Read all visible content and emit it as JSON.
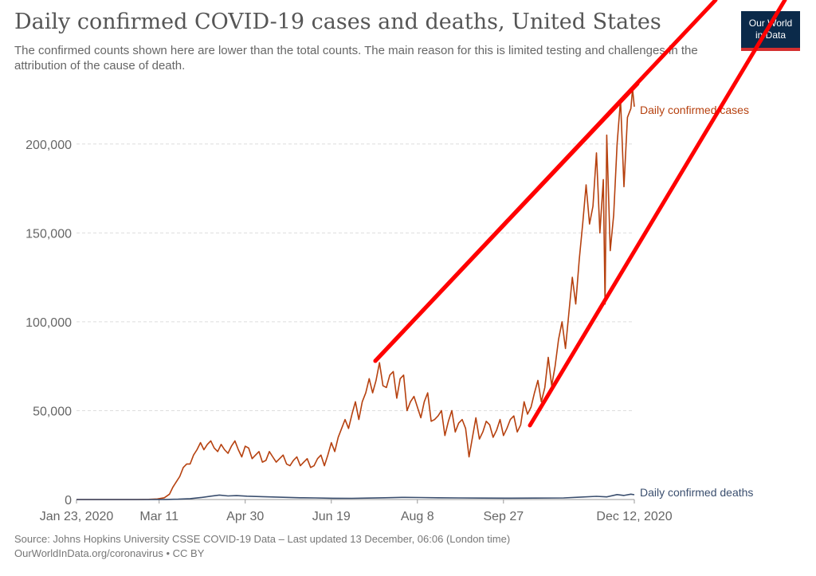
{
  "header": {
    "title": "Daily confirmed COVID-19 cases and deaths, United States",
    "subtitle": "The confirmed counts shown here are lower than the total counts. The main reason for this is limited testing and challenges in the attribution of the cause of death."
  },
  "logo": {
    "line1": "Our World",
    "line2": "in Data"
  },
  "footer": {
    "source": "Source: Johns Hopkins University CSSE COVID-19 Data – Last updated 13 December, 06:06 (London time)",
    "credit": "OurWorldInData.org/coronavirus • CC BY"
  },
  "colors": {
    "cases": "#b6410f",
    "deaths": "#3a4e6e",
    "grid": "#dddddd",
    "annotation": "#ff0000"
  },
  "chart_data": {
    "type": "line",
    "title": "Daily confirmed COVID-19 cases and deaths, United States",
    "xlabel": "",
    "ylabel": "",
    "ylim": [
      0,
      225000
    ],
    "yticks": [
      0,
      50000,
      100000,
      150000,
      200000
    ],
    "ytick_labels": [
      "0",
      "50,000",
      "100,000",
      "150,000",
      "200,000"
    ],
    "x_range": [
      "2020-01-23",
      "2020-12-12"
    ],
    "xticks": [
      "2020-01-23",
      "2020-03-11",
      "2020-04-30",
      "2020-06-19",
      "2020-08-08",
      "2020-09-27",
      "2020-12-12"
    ],
    "xtick_labels": [
      "Jan 23, 2020",
      "Mar 11",
      "Apr 30",
      "Jun 19",
      "Aug 8",
      "Sep 27",
      "Dec 12, 2020"
    ],
    "grid": "horizontal dashed",
    "legend": "inline labels at right end of lines",
    "series": [
      {
        "name": "Daily confirmed cases",
        "points": [
          [
            "2020-01-23",
            0
          ],
          [
            "2020-02-27",
            0
          ],
          [
            "2020-03-05",
            100
          ],
          [
            "2020-03-10",
            300
          ],
          [
            "2020-03-14",
            1000
          ],
          [
            "2020-03-17",
            3000
          ],
          [
            "2020-03-19",
            7000
          ],
          [
            "2020-03-21",
            10000
          ],
          [
            "2020-03-23",
            13000
          ],
          [
            "2020-03-25",
            18000
          ],
          [
            "2020-03-27",
            20000
          ],
          [
            "2020-03-29",
            20000
          ],
          [
            "2020-03-31",
            25000
          ],
          [
            "2020-04-02",
            28000
          ],
          [
            "2020-04-04",
            32000
          ],
          [
            "2020-04-06",
            28000
          ],
          [
            "2020-04-08",
            31000
          ],
          [
            "2020-04-10",
            33000
          ],
          [
            "2020-04-12",
            29000
          ],
          [
            "2020-04-14",
            27000
          ],
          [
            "2020-04-16",
            31000
          ],
          [
            "2020-04-18",
            28000
          ],
          [
            "2020-04-20",
            26000
          ],
          [
            "2020-04-22",
            30000
          ],
          [
            "2020-04-24",
            33000
          ],
          [
            "2020-04-26",
            28000
          ],
          [
            "2020-04-28",
            24000
          ],
          [
            "2020-04-30",
            30000
          ],
          [
            "2020-05-02",
            29000
          ],
          [
            "2020-05-04",
            23000
          ],
          [
            "2020-05-06",
            25000
          ],
          [
            "2020-05-08",
            27000
          ],
          [
            "2020-05-10",
            21000
          ],
          [
            "2020-05-12",
            22000
          ],
          [
            "2020-05-14",
            27000
          ],
          [
            "2020-05-16",
            24000
          ],
          [
            "2020-05-18",
            21000
          ],
          [
            "2020-05-20",
            23000
          ],
          [
            "2020-05-22",
            25000
          ],
          [
            "2020-05-24",
            20000
          ],
          [
            "2020-05-26",
            19000
          ],
          [
            "2020-05-28",
            22000
          ],
          [
            "2020-05-30",
            24000
          ],
          [
            "2020-06-01",
            19000
          ],
          [
            "2020-06-03",
            21000
          ],
          [
            "2020-06-05",
            23000
          ],
          [
            "2020-06-07",
            18000
          ],
          [
            "2020-06-09",
            19000
          ],
          [
            "2020-06-11",
            23000
          ],
          [
            "2020-06-13",
            25000
          ],
          [
            "2020-06-15",
            19000
          ],
          [
            "2020-06-17",
            25000
          ],
          [
            "2020-06-19",
            32000
          ],
          [
            "2020-06-21",
            27000
          ],
          [
            "2020-06-23",
            35000
          ],
          [
            "2020-06-25",
            40000
          ],
          [
            "2020-06-27",
            45000
          ],
          [
            "2020-06-29",
            40000
          ],
          [
            "2020-07-01",
            48000
          ],
          [
            "2020-07-03",
            55000
          ],
          [
            "2020-07-05",
            45000
          ],
          [
            "2020-07-07",
            55000
          ],
          [
            "2020-07-09",
            60000
          ],
          [
            "2020-07-11",
            68000
          ],
          [
            "2020-07-13",
            60000
          ],
          [
            "2020-07-15",
            67000
          ],
          [
            "2020-07-17",
            77000
          ],
          [
            "2020-07-19",
            64000
          ],
          [
            "2020-07-21",
            63000
          ],
          [
            "2020-07-23",
            70000
          ],
          [
            "2020-07-25",
            72000
          ],
          [
            "2020-07-27",
            57000
          ],
          [
            "2020-07-29",
            68000
          ],
          [
            "2020-07-31",
            70000
          ],
          [
            "2020-08-02",
            50000
          ],
          [
            "2020-08-04",
            55000
          ],
          [
            "2020-08-06",
            58000
          ],
          [
            "2020-08-08",
            52000
          ],
          [
            "2020-08-10",
            46000
          ],
          [
            "2020-08-12",
            55000
          ],
          [
            "2020-08-14",
            60000
          ],
          [
            "2020-08-16",
            44000
          ],
          [
            "2020-08-18",
            45000
          ],
          [
            "2020-08-20",
            47000
          ],
          [
            "2020-08-22",
            50000
          ],
          [
            "2020-08-24",
            36000
          ],
          [
            "2020-08-26",
            44000
          ],
          [
            "2020-08-28",
            50000
          ],
          [
            "2020-08-30",
            38000
          ],
          [
            "2020-09-01",
            43000
          ],
          [
            "2020-09-03",
            45000
          ],
          [
            "2020-09-05",
            40000
          ],
          [
            "2020-09-07",
            24000
          ],
          [
            "2020-09-09",
            35000
          ],
          [
            "2020-09-11",
            46000
          ],
          [
            "2020-09-13",
            34000
          ],
          [
            "2020-09-15",
            38000
          ],
          [
            "2020-09-17",
            44000
          ],
          [
            "2020-09-19",
            42000
          ],
          [
            "2020-09-21",
            35000
          ],
          [
            "2020-09-23",
            39000
          ],
          [
            "2020-09-25",
            45000
          ],
          [
            "2020-09-27",
            36000
          ],
          [
            "2020-09-29",
            40000
          ],
          [
            "2020-10-01",
            45000
          ],
          [
            "2020-10-03",
            47000
          ],
          [
            "2020-10-05",
            38000
          ],
          [
            "2020-10-07",
            42000
          ],
          [
            "2020-10-09",
            55000
          ],
          [
            "2020-10-11",
            48000
          ],
          [
            "2020-10-13",
            52000
          ],
          [
            "2020-10-15",
            60000
          ],
          [
            "2020-10-17",
            67000
          ],
          [
            "2020-10-19",
            55000
          ],
          [
            "2020-10-21",
            63000
          ],
          [
            "2020-10-23",
            80000
          ],
          [
            "2020-10-25",
            64000
          ],
          [
            "2020-10-27",
            75000
          ],
          [
            "2020-10-29",
            90000
          ],
          [
            "2020-10-31",
            100000
          ],
          [
            "2020-11-02",
            85000
          ],
          [
            "2020-11-04",
            105000
          ],
          [
            "2020-11-06",
            125000
          ],
          [
            "2020-11-08",
            110000
          ],
          [
            "2020-11-10",
            135000
          ],
          [
            "2020-11-12",
            155000
          ],
          [
            "2020-11-14",
            177000
          ],
          [
            "2020-11-16",
            155000
          ],
          [
            "2020-11-18",
            165000
          ],
          [
            "2020-11-20",
            195000
          ],
          [
            "2020-11-22",
            150000
          ],
          [
            "2020-11-24",
            180000
          ],
          [
            "2020-11-25",
            110000
          ],
          [
            "2020-11-26",
            205000
          ],
          [
            "2020-11-28",
            140000
          ],
          [
            "2020-11-30",
            160000
          ],
          [
            "2020-12-02",
            200000
          ],
          [
            "2020-12-04",
            225000
          ],
          [
            "2020-12-06",
            176000
          ],
          [
            "2020-12-08",
            215000
          ],
          [
            "2020-12-10",
            220000
          ],
          [
            "2020-12-11",
            231000
          ],
          [
            "2020-12-12",
            221000
          ]
        ]
      },
      {
        "name": "Daily confirmed deaths",
        "points": [
          [
            "2020-01-23",
            0
          ],
          [
            "2020-03-01",
            0
          ],
          [
            "2020-03-15",
            50
          ],
          [
            "2020-03-22",
            200
          ],
          [
            "2020-03-29",
            500
          ],
          [
            "2020-04-05",
            1200
          ],
          [
            "2020-04-10",
            1900
          ],
          [
            "2020-04-15",
            2500
          ],
          [
            "2020-04-20",
            2000
          ],
          [
            "2020-04-25",
            2200
          ],
          [
            "2020-05-01",
            1900
          ],
          [
            "2020-05-10",
            1600
          ],
          [
            "2020-05-20",
            1300
          ],
          [
            "2020-06-01",
            1000
          ],
          [
            "2020-06-10",
            900
          ],
          [
            "2020-06-20",
            700
          ],
          [
            "2020-07-01",
            650
          ],
          [
            "2020-07-10",
            800
          ],
          [
            "2020-07-20",
            1000
          ],
          [
            "2020-07-30",
            1200
          ],
          [
            "2020-08-10",
            1100
          ],
          [
            "2020-08-20",
            1000
          ],
          [
            "2020-09-01",
            900
          ],
          [
            "2020-09-15",
            800
          ],
          [
            "2020-10-01",
            750
          ],
          [
            "2020-10-15",
            800
          ],
          [
            "2020-11-01",
            900
          ],
          [
            "2020-11-10",
            1300
          ],
          [
            "2020-11-20",
            1800
          ],
          [
            "2020-11-26",
            1500
          ],
          [
            "2020-12-02",
            2800
          ],
          [
            "2020-12-06",
            2300
          ],
          [
            "2020-12-10",
            3000
          ],
          [
            "2020-12-12",
            2700
          ]
        ]
      }
    ]
  }
}
